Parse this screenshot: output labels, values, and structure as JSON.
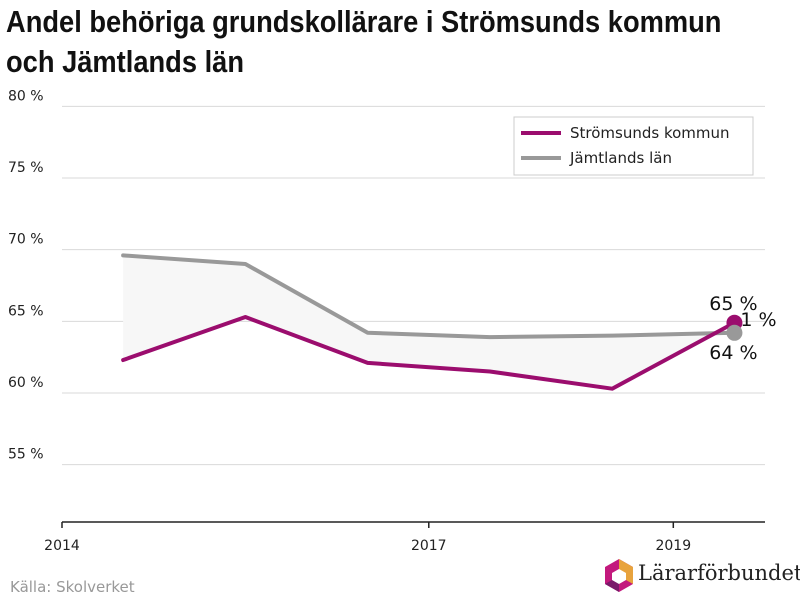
{
  "title_line1": "Andel behöriga grundskollärare i Strömsunds kommun",
  "title_line2": "och Jämtlands län",
  "source": "Källa: Skolverket",
  "logo_text": "Lärarförbundet",
  "chart_data": {
    "type": "line",
    "title": "Andel behöriga grundskollärare i Strömsunds kommun och Jämtlands län",
    "x": [
      2014.5,
      2015.5,
      2016.5,
      2017.5,
      2018.5,
      2019.5
    ],
    "x_ticks": [
      2014,
      2017,
      2019
    ],
    "x_tick_labels": [
      "2014",
      "2017",
      "2019"
    ],
    "xlim": [
      2014,
      2019.75
    ],
    "ylim": [
      51,
      81
    ],
    "y_ticks": [
      55,
      60,
      65,
      70,
      75,
      80
    ],
    "y_tick_labels": [
      "55 %",
      "60 %",
      "65 %",
      "70 %",
      "75 %",
      "80 %"
    ],
    "grid": true,
    "legend_position": "top-right",
    "series": [
      {
        "name": "Strömsunds kommun",
        "color": "#9b0d6e",
        "values": [
          62.3,
          65.3,
          62.1,
          61.5,
          60.3,
          64.9
        ],
        "end_label": "65 %"
      },
      {
        "name": "Jämtlands län",
        "color": "#999999",
        "values": [
          69.6,
          69.0,
          64.2,
          63.9,
          64.0,
          64.2
        ],
        "end_label": "64 %"
      }
    ],
    "annotation": "1 %",
    "fill_color": "#f7f7f7"
  }
}
